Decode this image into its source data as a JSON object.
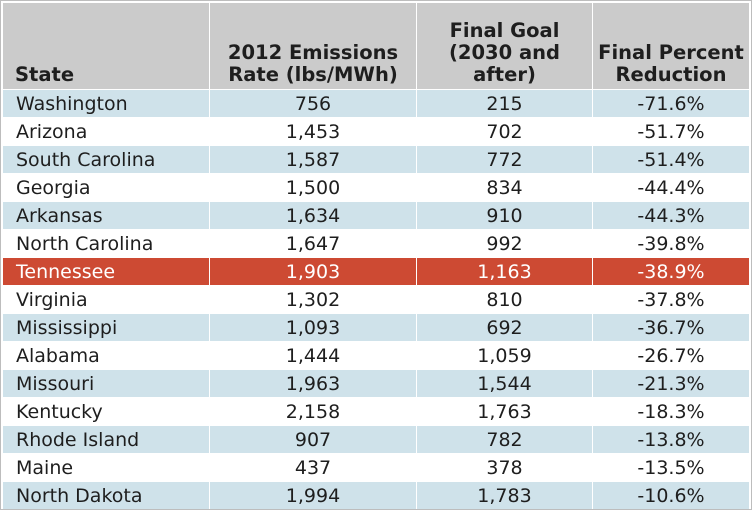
{
  "colors": {
    "header_bg": "#cbcbcb",
    "odd_row_bg": "#cfe2ea",
    "even_row_bg": "#ffffff",
    "highlight_bg": "#cd4a33",
    "highlight_text": "#ffffff"
  },
  "chart_data": {
    "type": "table",
    "columns": [
      "State",
      "2012 Emissions Rate (lbs/MWh)",
      "Final Goal (2030 and after)",
      "Final Percent Reduction"
    ],
    "header_lines": [
      [
        "State"
      ],
      [
        "2012 Emissions",
        "Rate (lbs/MWh)"
      ],
      [
        "Final Goal",
        "(2030 and",
        "after)"
      ],
      [
        "Final Percent",
        "Reduction"
      ]
    ],
    "highlighted_row": "Tennessee",
    "rows": [
      [
        "Washington",
        "756",
        "215",
        "-71.6%"
      ],
      [
        "Arizona",
        "1,453",
        "702",
        "-51.7%"
      ],
      [
        "South Carolina",
        "1,587",
        "772",
        "-51.4%"
      ],
      [
        "Georgia",
        "1,500",
        "834",
        "-44.4%"
      ],
      [
        "Arkansas",
        "1,634",
        "910",
        "-44.3%"
      ],
      [
        "North Carolina",
        "1,647",
        "992",
        "-39.8%"
      ],
      [
        "Tennessee",
        "1,903",
        "1,163",
        "-38.9%"
      ],
      [
        "Virginia",
        "1,302",
        "810",
        "-37.8%"
      ],
      [
        "Mississippi",
        "1,093",
        "692",
        "-36.7%"
      ],
      [
        "Alabama",
        "1,444",
        "1,059",
        "-26.7%"
      ],
      [
        "Missouri",
        "1,963",
        "1,544",
        "-21.3%"
      ],
      [
        "Kentucky",
        "2,158",
        "1,763",
        "-18.3%"
      ],
      [
        "Rhode Island",
        "907",
        "782",
        "-13.8%"
      ],
      [
        "Maine",
        "437",
        "378",
        "-13.5%"
      ],
      [
        "North Dakota",
        "1,994",
        "1,783",
        "-10.6%"
      ]
    ]
  }
}
